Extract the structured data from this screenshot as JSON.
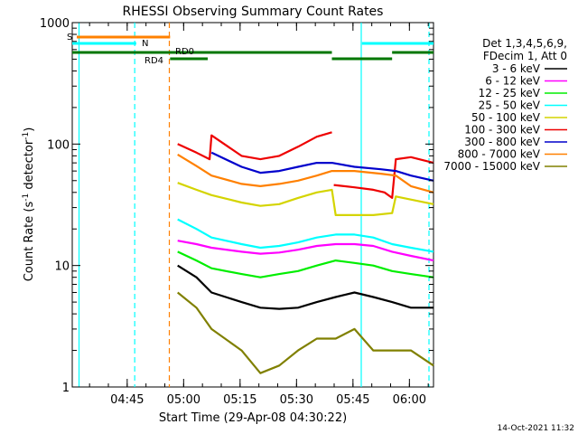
{
  "chart_data": {
    "type": "line",
    "title": "RHESSI Observing Summary Count Rates",
    "xlabel": "Start Time (29-Apr-08 04:30:22)",
    "ylabel_parts": [
      "Count Rate (s",
      "-1",
      " detector",
      "-1",
      ")"
    ],
    "yscale": "log",
    "ylim": [
      1,
      1000
    ],
    "y_ticks": [
      {
        "value": 1,
        "label": "1"
      },
      {
        "value": 10,
        "label": "10"
      },
      {
        "value": 100,
        "label": "100"
      },
      {
        "value": 1000,
        "label": "1000"
      }
    ],
    "x_range_minutes": [
      0,
      96
    ],
    "x_ticks": [
      {
        "minute": 14.6,
        "label": "04:45"
      },
      {
        "minute": 29.6,
        "label": "05:00"
      },
      {
        "minute": 44.6,
        "label": "05:15"
      },
      {
        "minute": 59.6,
        "label": "05:30"
      },
      {
        "minute": 74.6,
        "label": "05:45"
      },
      {
        "minute": 89.6,
        "label": "06:00"
      }
    ],
    "legend": {
      "position": "right",
      "header": [
        "Det 1,3,4,5,6,9,",
        "FDecim 1, Att 0"
      ],
      "entries": [
        {
          "label": "3 - 6 keV",
          "color": "#000000"
        },
        {
          "label": "6 - 12 keV",
          "color": "#ff00ff"
        },
        {
          "label": "12 - 25 keV",
          "color": "#00ee00"
        },
        {
          "label": "25 - 50 keV",
          "color": "#00ffff"
        },
        {
          "label": "50 - 100 keV",
          "color": "#d4d400"
        },
        {
          "label": "100 - 300 keV",
          "color": "#ee0000"
        },
        {
          "label": "300 - 800 keV",
          "color": "#0000cc"
        },
        {
          "label": "800 - 7000 keV",
          "color": "#ff8000"
        },
        {
          "label": "7000 - 15000 keV",
          "color": "#808000"
        }
      ]
    },
    "flag_labels": {
      "saa": "S",
      "night": "N",
      "rd0": "RD0",
      "rd4": "RD4"
    },
    "vlines": [
      {
        "minute": 1.8,
        "color": "#00ffff",
        "style": "solid"
      },
      {
        "minute": 16.6,
        "color": "#00ffff",
        "style": "dashed"
      },
      {
        "minute": 25.8,
        "color": "#ff8000",
        "style": "dashed"
      },
      {
        "minute": 76.8,
        "color": "#00ffff",
        "style": "solid"
      },
      {
        "minute": 94.8,
        "color": "#00ffff",
        "style": "dashed"
      }
    ],
    "series": [
      {
        "name": "100 - 300 keV",
        "color": "#ee0000",
        "segments": [
          {
            "points": [
              [
                28,
                100
              ],
              [
                33,
                85
              ],
              [
                36.5,
                75
              ],
              [
                37,
                118
              ],
              [
                45,
                80
              ],
              [
                50,
                75
              ],
              [
                55,
                80
              ],
              [
                60,
                95
              ],
              [
                65,
                115
              ],
              [
                69,
                125
              ]
            ]
          },
          {
            "points": [
              [
                69.5,
                46
              ],
              [
                75,
                44
              ],
              [
                80,
                42
              ],
              [
                83,
                40
              ],
              [
                85,
                36
              ],
              [
                86,
                75
              ],
              [
                90,
                78
              ],
              [
                96,
                70
              ]
            ]
          }
        ]
      },
      {
        "name": "300 - 800 keV",
        "color": "#0000cc",
        "segments": [
          {
            "points": [
              [
                37,
                85
              ],
              [
                45,
                65
              ],
              [
                50,
                58
              ],
              [
                55,
                60
              ],
              [
                60,
                65
              ],
              [
                65,
                70
              ],
              [
                69,
                70
              ],
              [
                75,
                65
              ],
              [
                82,
                62
              ],
              [
                86,
                60
              ],
              [
                90,
                55
              ],
              [
                96,
                50
              ]
            ]
          }
        ]
      },
      {
        "name": "800 - 7000 keV",
        "color": "#ff8000",
        "segments": [
          {
            "points": [
              [
                28,
                82
              ],
              [
                33,
                66
              ],
              [
                37,
                55
              ],
              [
                45,
                47
              ],
              [
                50,
                45
              ],
              [
                55,
                47
              ],
              [
                60,
                50
              ],
              [
                65,
                55
              ],
              [
                69,
                60
              ],
              [
                75,
                60
              ],
              [
                82,
                57
              ],
              [
                86,
                55
              ],
              [
                90,
                45
              ],
              [
                96,
                40
              ]
            ]
          }
        ]
      },
      {
        "name": "50 - 100 keV",
        "color": "#d4d400",
        "segments": [
          {
            "points": [
              [
                28,
                48
              ],
              [
                33,
                42
              ],
              [
                37,
                38
              ],
              [
                45,
                33
              ],
              [
                50,
                31
              ],
              [
                55,
                32
              ],
              [
                60,
                36
              ],
              [
                65,
                40
              ],
              [
                69,
                42
              ],
              [
                70,
                26
              ],
              [
                80,
                26
              ],
              [
                85,
                27
              ],
              [
                86,
                37
              ],
              [
                96,
                32
              ]
            ]
          }
        ]
      },
      {
        "name": "25 - 50 keV",
        "color": "#00ffff",
        "segments": [
          {
            "points": [
              [
                28,
                24
              ],
              [
                33,
                20
              ],
              [
                37,
                17
              ],
              [
                45,
                15
              ],
              [
                50,
                14
              ],
              [
                55,
                14.5
              ],
              [
                60,
                15.5
              ],
              [
                65,
                17
              ],
              [
                70,
                18
              ],
              [
                75,
                18
              ],
              [
                80,
                17
              ],
              [
                85,
                15
              ],
              [
                90,
                14
              ],
              [
                96,
                13
              ]
            ]
          }
        ]
      },
      {
        "name": "6 - 12 keV",
        "color": "#ff00ff",
        "segments": [
          {
            "points": [
              [
                28,
                16
              ],
              [
                33,
                15
              ],
              [
                37,
                14
              ],
              [
                45,
                13
              ],
              [
                50,
                12.5
              ],
              [
                55,
                12.8
              ],
              [
                60,
                13.5
              ],
              [
                65,
                14.5
              ],
              [
                70,
                15
              ],
              [
                75,
                15
              ],
              [
                80,
                14.5
              ],
              [
                85,
                13
              ],
              [
                90,
                12
              ],
              [
                96,
                11
              ]
            ]
          }
        ]
      },
      {
        "name": "12 - 25 keV",
        "color": "#00ee00",
        "segments": [
          {
            "points": [
              [
                28,
                13
              ],
              [
                33,
                11
              ],
              [
                37,
                9.5
              ],
              [
                45,
                8.5
              ],
              [
                50,
                8
              ],
              [
                55,
                8.5
              ],
              [
                60,
                9
              ],
              [
                65,
                10
              ],
              [
                70,
                11
              ],
              [
                75,
                10.5
              ],
              [
                80,
                10
              ],
              [
                85,
                9
              ],
              [
                90,
                8.5
              ],
              [
                96,
                8
              ]
            ]
          }
        ]
      },
      {
        "name": "3 - 6 keV",
        "color": "#000000",
        "segments": [
          {
            "points": [
              [
                28,
                10
              ],
              [
                33,
                8
              ],
              [
                37,
                6
              ],
              [
                45,
                5
              ],
              [
                50,
                4.5
              ],
              [
                55,
                4.4
              ],
              [
                60,
                4.5
              ],
              [
                65,
                5
              ],
              [
                70,
                5.5
              ],
              [
                75,
                6
              ],
              [
                80,
                5.5
              ],
              [
                85,
                5
              ],
              [
                90,
                4.5
              ],
              [
                96,
                4.5
              ]
            ]
          }
        ]
      },
      {
        "name": "7000 - 15000 keV",
        "color": "#808000",
        "segments": [
          {
            "points": [
              [
                28,
                6
              ],
              [
                33,
                4.5
              ],
              [
                37,
                3
              ],
              [
                45,
                2
              ],
              [
                50,
                1.3
              ],
              [
                55,
                1.5
              ],
              [
                60,
                2
              ],
              [
                65,
                2.5
              ],
              [
                70,
                2.5
              ],
              [
                75,
                3
              ],
              [
                80,
                2
              ],
              [
                85,
                2
              ],
              [
                90,
                2
              ],
              [
                96,
                1.5
              ]
            ]
          }
        ]
      }
    ],
    "footer_date": "14-Oct-2021 11:32"
  }
}
